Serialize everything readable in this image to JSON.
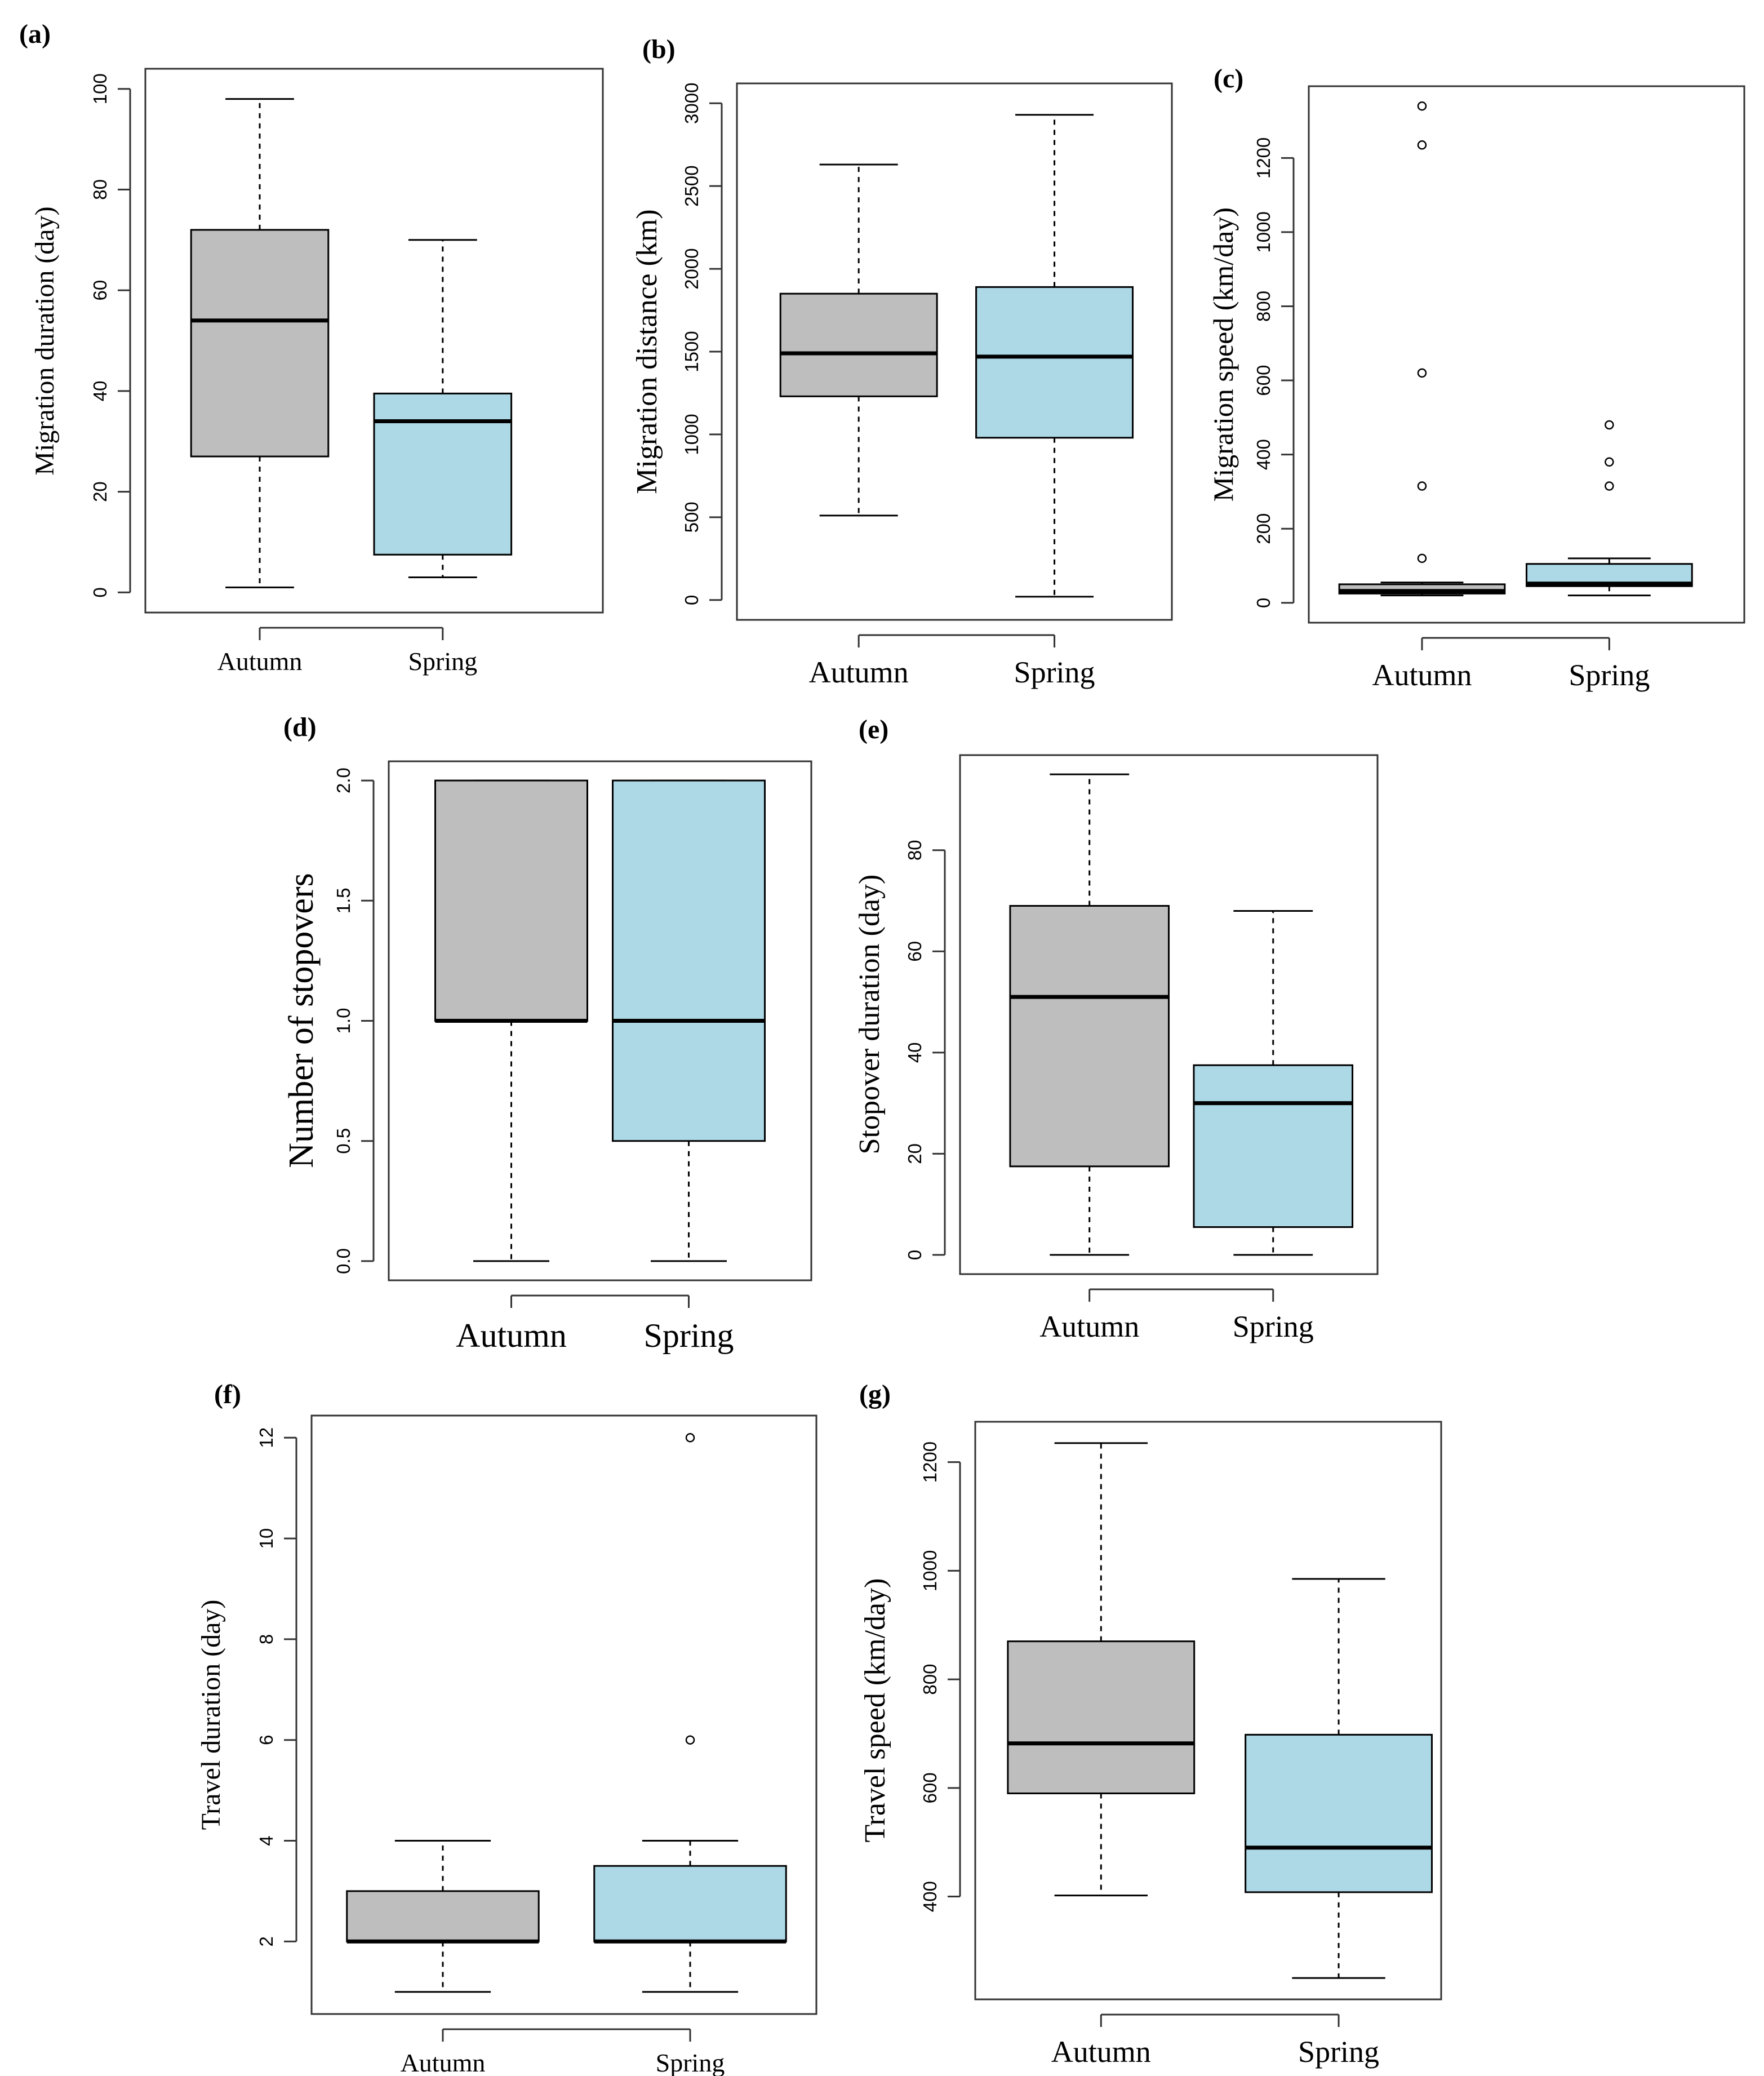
{
  "colors": {
    "autumn": "#bebebe",
    "spring": "#add8e6",
    "stroke": "#000000",
    "background": "#ffffff"
  },
  "chart_data": [
    {
      "id": "a",
      "panel_label": "(a)",
      "type": "boxplot",
      "ylabel": "Migration duration (day)",
      "ylim": [
        0,
        100
      ],
      "yticks": [
        0,
        20,
        40,
        60,
        80,
        100
      ],
      "categories": [
        "Autumn",
        "Spring"
      ],
      "boxes": [
        {
          "category": "Autumn",
          "min": 1,
          "q1": 27,
          "median": 54,
          "q3": 72,
          "max": 98,
          "outliers": []
        },
        {
          "category": "Spring",
          "min": 3,
          "q1": 7.5,
          "median": 34,
          "q3": 39.5,
          "max": 70,
          "outliers": []
        }
      ]
    },
    {
      "id": "b",
      "panel_label": "(b)",
      "type": "boxplot",
      "ylabel": "Migration distance (km)",
      "ylim": [
        0,
        3000
      ],
      "yticks": [
        0,
        500,
        1000,
        1500,
        2000,
        2500,
        3000
      ],
      "categories": [
        "Autumn",
        "Spring"
      ],
      "boxes": [
        {
          "category": "Autumn",
          "min": 510,
          "q1": 1230,
          "median": 1490,
          "q3": 1850,
          "max": 2630,
          "outliers": []
        },
        {
          "category": "Spring",
          "min": 20,
          "q1": 980,
          "median": 1470,
          "q3": 1890,
          "max": 2930,
          "outliers": []
        }
      ]
    },
    {
      "id": "c",
      "panel_label": "(c)",
      "type": "boxplot",
      "ylabel": "Migration speed (km/day)",
      "ylim": [
        0,
        1340
      ],
      "yticks": [
        0,
        200,
        400,
        600,
        800,
        1000,
        1200
      ],
      "categories": [
        "Autumn",
        "Spring"
      ],
      "boxes": [
        {
          "category": "Autumn",
          "min": 20,
          "q1": 25,
          "median": 32,
          "q3": 50,
          "max": 55,
          "outliers": [
            120,
            315,
            620,
            1235,
            1340
          ]
        },
        {
          "category": "Spring",
          "min": 20,
          "q1": 45,
          "median": 52,
          "q3": 105,
          "max": 120,
          "outliers": [
            315,
            380,
            480
          ]
        }
      ]
    },
    {
      "id": "d",
      "panel_label": "(d)",
      "type": "boxplot",
      "ylabel": "Number of stopovers",
      "ylim": [
        0,
        2
      ],
      "yticks": [
        0.0,
        0.5,
        1.0,
        1.5,
        2.0
      ],
      "ytick_labels": [
        "0.0",
        "0.5",
        "1.0",
        "1.5",
        "2.0"
      ],
      "categories": [
        "Autumn",
        "Spring"
      ],
      "boxes": [
        {
          "category": "Autumn",
          "min": 0,
          "q1": 1,
          "median": 1,
          "q3": 2,
          "max": 2,
          "outliers": []
        },
        {
          "category": "Spring",
          "min": 0,
          "q1": 0.5,
          "median": 1,
          "q3": 2,
          "max": 2,
          "outliers": []
        }
      ]
    },
    {
      "id": "e",
      "panel_label": "(e)",
      "type": "boxplot",
      "ylabel": "Stopover duration (day)",
      "ylim": [
        0,
        95
      ],
      "yticks": [
        0,
        20,
        40,
        60,
        80
      ],
      "categories": [
        "Autumn",
        "Spring"
      ],
      "boxes": [
        {
          "category": "Autumn",
          "min": 0,
          "q1": 17.5,
          "median": 51,
          "q3": 69,
          "max": 95,
          "outliers": []
        },
        {
          "category": "Spring",
          "min": 0,
          "q1": 5.5,
          "median": 30,
          "q3": 37.5,
          "max": 68,
          "outliers": []
        }
      ]
    },
    {
      "id": "f",
      "panel_label": "(f)",
      "type": "boxplot",
      "ylabel": "Travel duration (day)",
      "ylim": [
        1,
        12
      ],
      "yticks": [
        2,
        4,
        6,
        8,
        10,
        12
      ],
      "categories": [
        "Autumn",
        "Spring"
      ],
      "boxes": [
        {
          "category": "Autumn",
          "min": 1,
          "q1": 2,
          "median": 2,
          "q3": 3,
          "max": 4,
          "outliers": []
        },
        {
          "category": "Spring",
          "min": 1,
          "q1": 2,
          "median": 2,
          "q3": 3.5,
          "max": 4,
          "outliers": [
            6,
            12
          ]
        }
      ]
    },
    {
      "id": "g",
      "panel_label": "(g)",
      "type": "boxplot",
      "ylabel": "Travel speed (km/day)",
      "ylim": [
        250,
        1235
      ],
      "yticks": [
        400,
        600,
        800,
        1000,
        1200
      ],
      "categories": [
        "Autumn",
        "Spring"
      ],
      "boxes": [
        {
          "category": "Autumn",
          "min": 402,
          "q1": 590,
          "median": 682,
          "q3": 870,
          "max": 1235,
          "outliers": []
        },
        {
          "category": "Spring",
          "min": 250,
          "q1": 408,
          "median": 490,
          "q3": 698,
          "max": 985,
          "outliers": []
        }
      ]
    }
  ]
}
